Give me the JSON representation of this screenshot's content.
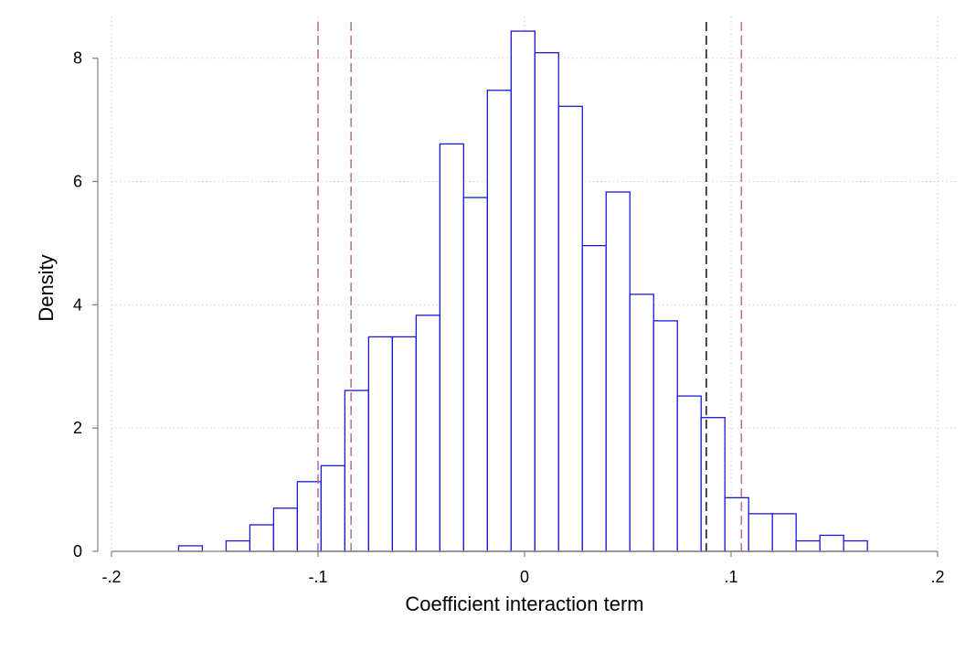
{
  "chart_data": {
    "type": "histogram",
    "xlabel": "Coefficient interaction term",
    "ylabel": "Density",
    "xlim": [
      -0.2,
      0.2
    ],
    "ylim": [
      0,
      8.5
    ],
    "x_ticks": [
      {
        "value": -0.2,
        "label": "-.2"
      },
      {
        "value": -0.1,
        "label": "-.1"
      },
      {
        "value": 0,
        "label": "0"
      },
      {
        "value": 0.1,
        "label": ".1"
      },
      {
        "value": 0.2,
        "label": ".2"
      }
    ],
    "y_ticks": [
      {
        "value": 0,
        "label": "0"
      },
      {
        "value": 2,
        "label": "2"
      },
      {
        "value": 4,
        "label": "4"
      },
      {
        "value": 6,
        "label": "6"
      },
      {
        "value": 8,
        "label": "8"
      }
    ],
    "grid": true,
    "bin_width": 0.0115,
    "bins": [
      {
        "start": -0.1675,
        "density": 0.09
      },
      {
        "start": -0.156,
        "density": 0.0
      },
      {
        "start": -0.1445,
        "density": 0.17
      },
      {
        "start": -0.133,
        "density": 0.43
      },
      {
        "start": -0.1215,
        "density": 0.7
      },
      {
        "start": -0.11,
        "density": 1.13
      },
      {
        "start": -0.0985,
        "density": 1.39
      },
      {
        "start": -0.087,
        "density": 2.61
      },
      {
        "start": -0.0755,
        "density": 3.48
      },
      {
        "start": -0.064,
        "density": 3.48
      },
      {
        "start": -0.0525,
        "density": 3.83
      },
      {
        "start": -0.041,
        "density": 6.61
      },
      {
        "start": -0.0295,
        "density": 5.74
      },
      {
        "start": -0.018,
        "density": 7.48
      },
      {
        "start": -0.0065,
        "density": 8.44
      },
      {
        "start": 0.005,
        "density": 8.09
      },
      {
        "start": 0.0165,
        "density": 7.22
      },
      {
        "start": 0.028,
        "density": 4.96
      },
      {
        "start": 0.0395,
        "density": 5.83
      },
      {
        "start": 0.051,
        "density": 4.17
      },
      {
        "start": 0.0625,
        "density": 3.74
      },
      {
        "start": 0.074,
        "density": 2.52
      },
      {
        "start": 0.0855,
        "density": 2.17
      },
      {
        "start": 0.097,
        "density": 0.87
      },
      {
        "start": 0.1085,
        "density": 0.61
      },
      {
        "start": 0.12,
        "density": 0.61
      },
      {
        "start": 0.1315,
        "density": 0.17
      },
      {
        "start": 0.143,
        "density": 0.26
      },
      {
        "start": 0.1545,
        "density": 0.17
      }
    ],
    "reference_lines": [
      {
        "x": -0.1,
        "style": "dashed",
        "color": "#c0709a"
      },
      {
        "x": -0.084,
        "style": "dashed",
        "color": "#c0709a"
      },
      {
        "x": 0.088,
        "style": "dashed",
        "color": "#2a1a2e"
      },
      {
        "x": 0.105,
        "style": "dashed",
        "color": "#c0709a"
      }
    ],
    "colors": {
      "bar_outline": "#1a1ad6",
      "bar_fill": "#ffffff",
      "grid": "#d0d0d0",
      "axis": "#7f7f7f"
    }
  }
}
